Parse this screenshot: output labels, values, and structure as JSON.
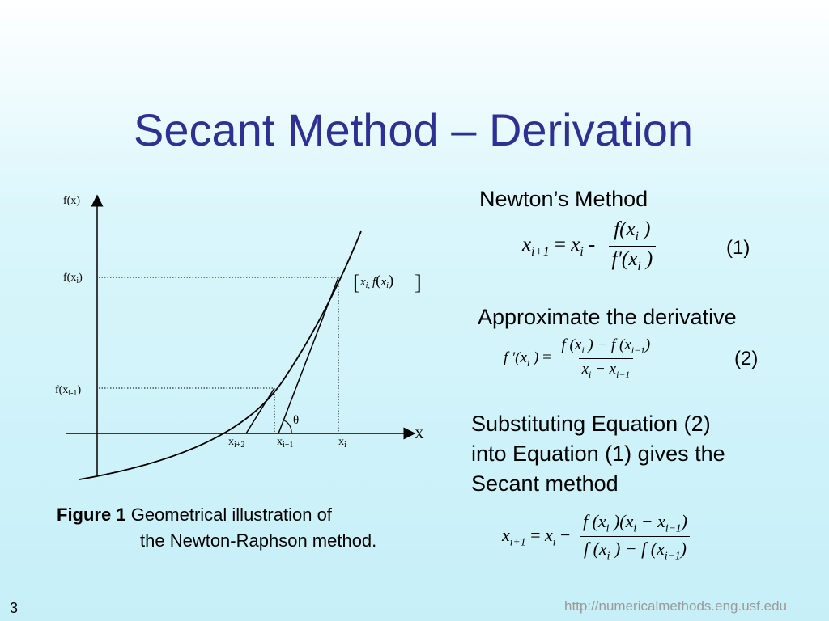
{
  "slide": {
    "title": "Secant Method – Derivation",
    "page_number": "3",
    "footer_url": "http://numericalmethods.eng.usf.edu"
  },
  "figure": {
    "y_axis_label": "f(x)",
    "x_axis_label": "X",
    "fxi_label": "f(x",
    "fxi_sub": "i",
    "fxim1_label": "f(x",
    "fxim1_sub": "i-1",
    "x_label": "x",
    "xi2_sub": "i+2",
    "xi1_sub": "i+1",
    "xi_sub": "i",
    "theta": "θ",
    "point_label_x": "x",
    "point_label_sub": "i,",
    "point_label_f": "f",
    "point_label_xi": "x",
    "point_label_xi_sub": "i",
    "caption_bold": "Figure 1",
    "caption_line1": "Geometrical illustration of",
    "caption_line2": "the Newton-Raphson method."
  },
  "right": {
    "newton_heading": "Newton’s Method",
    "eq1_number": "(1)",
    "approx_heading": "Approximate the derivative",
    "eq2_number": "(2)",
    "subst_line1": "Substituting Equation (2)",
    "subst_line2": "into Equation (1) gives the",
    "subst_line3": "Secant method"
  }
}
